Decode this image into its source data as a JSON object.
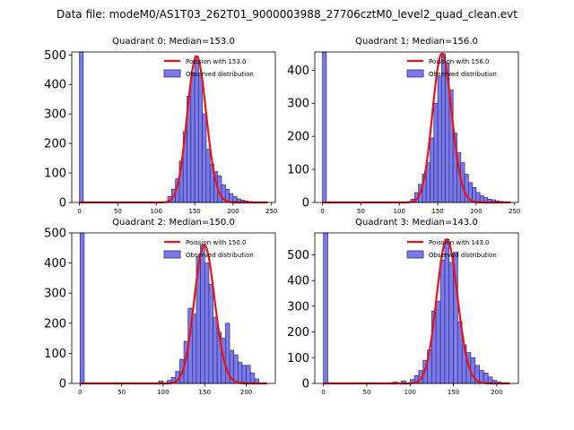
{
  "suptitle": "Data file: modeM0/AS1T03_262T01_9000003988_27706cztM0_level2_quad_clean.evt",
  "colors": {
    "hist_fill": "#7b7be8",
    "hist_edge": "#2a2a8a",
    "poisson_line": "#ee1111"
  },
  "chart_data": [
    {
      "type": "bar",
      "title": "Quadrant 0: Median=153.0",
      "xlabel": "",
      "ylabel": "",
      "median": 153.0,
      "xlim": [
        -10,
        255
      ],
      "ylim": [
        0,
        510
      ],
      "xticks": [
        0,
        50,
        100,
        150,
        200,
        250
      ],
      "yticks": [
        0,
        100,
        200,
        300,
        400,
        500
      ],
      "bin_width": 5,
      "bins": [
        0,
        115,
        120,
        125,
        130,
        135,
        140,
        145,
        150,
        155,
        160,
        165,
        170,
        175,
        180,
        185,
        190,
        195,
        200,
        205,
        210,
        215,
        220,
        225,
        230
      ],
      "counts": [
        510,
        20,
        45,
        80,
        140,
        240,
        360,
        440,
        495,
        430,
        300,
        180,
        130,
        105,
        90,
        60,
        45,
        30,
        20,
        12,
        8,
        5,
        3,
        2,
        1
      ],
      "legend": [
        "Poission with 153.0",
        "Observed distribution"
      ],
      "legend_position": "top-right"
    },
    {
      "type": "bar",
      "title": "Quadrant 1: Median=156.0",
      "xlabel": "",
      "ylabel": "",
      "median": 156.0,
      "xlim": [
        -10,
        255
      ],
      "ylim": [
        0,
        455
      ],
      "xticks": [
        0,
        50,
        100,
        150,
        200,
        250
      ],
      "yticks": [
        0,
        100,
        200,
        300,
        400
      ],
      "bin_width": 5,
      "bins": [
        0,
        115,
        120,
        125,
        130,
        135,
        140,
        145,
        150,
        155,
        160,
        165,
        170,
        175,
        180,
        185,
        190,
        195,
        200,
        205,
        210,
        215,
        220,
        225,
        230,
        235,
        240
      ],
      "counts": [
        455,
        10,
        30,
        55,
        85,
        120,
        195,
        300,
        380,
        450,
        420,
        340,
        210,
        150,
        120,
        85,
        60,
        45,
        30,
        20,
        15,
        10,
        8,
        5,
        3,
        2,
        1
      ],
      "legend": [
        "Poission with 156.0",
        "Observed distribution"
      ],
      "legend_position": "top-right"
    },
    {
      "type": "bar",
      "title": "Quadrant 2: Median=150.0",
      "xlabel": "",
      "ylabel": "",
      "median": 150.0,
      "xlim": [
        -10,
        235
      ],
      "ylim": [
        0,
        500
      ],
      "xticks": [
        0,
        50,
        100,
        150,
        200
      ],
      "yticks": [
        0,
        100,
        200,
        300,
        400,
        500
      ],
      "bin_width": 5,
      "bins": [
        0,
        95,
        105,
        110,
        115,
        120,
        125,
        130,
        135,
        140,
        145,
        150,
        155,
        160,
        165,
        170,
        175,
        180,
        185,
        190,
        195,
        200,
        205,
        210
      ],
      "counts": [
        500,
        8,
        10,
        20,
        40,
        80,
        140,
        250,
        230,
        420,
        460,
        400,
        330,
        220,
        170,
        150,
        200,
        110,
        95,
        70,
        60,
        60,
        35,
        15
      ],
      "legend": [
        "Poission with 150.0",
        "Observed distribution"
      ],
      "legend_position": "top-right"
    },
    {
      "type": "bar",
      "title": "Quadrant 3: Median=143.0",
      "xlabel": "",
      "ylabel": "",
      "median": 143.0,
      "xlim": [
        -10,
        225
      ],
      "ylim": [
        0,
        585
      ],
      "xticks": [
        0,
        50,
        100,
        150,
        200
      ],
      "yticks": [
        0,
        100,
        200,
        300,
        400,
        500
      ],
      "bin_width": 5,
      "bins": [
        0,
        80,
        90,
        100,
        105,
        110,
        115,
        120,
        125,
        130,
        135,
        140,
        145,
        150,
        155,
        160,
        165,
        170,
        175,
        180,
        185,
        190,
        195,
        200
      ],
      "counts": [
        585,
        5,
        10,
        15,
        30,
        50,
        90,
        130,
        280,
        320,
        480,
        560,
        470,
        510,
        240,
        150,
        120,
        100,
        70,
        50,
        40,
        25,
        12,
        5
      ],
      "legend": [
        "Poission with 143.0",
        "Observed distribution"
      ],
      "legend_position": "top-right"
    }
  ]
}
